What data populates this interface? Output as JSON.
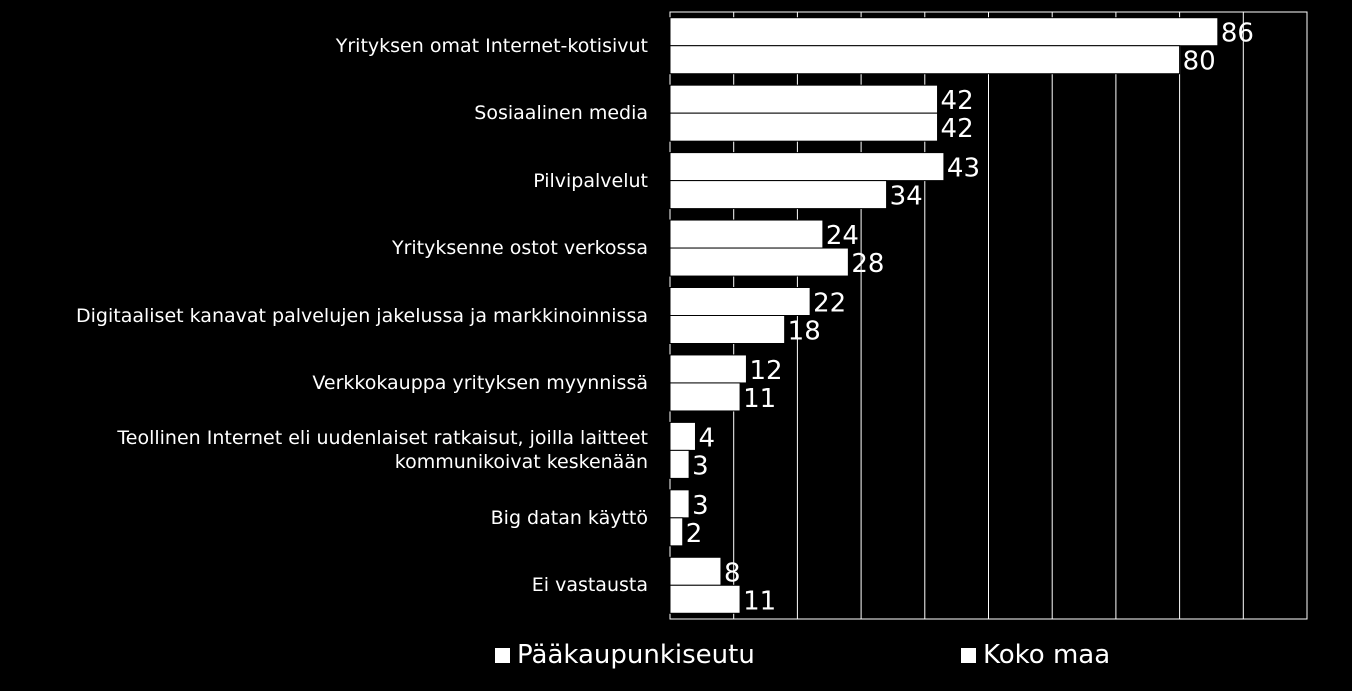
{
  "chart_data": {
    "type": "bar",
    "orientation": "horizontal",
    "categories": [
      "Yrityksen omat Internet-kotisivut",
      "Sosiaalinen media",
      "Pilvipalvelut",
      "Yrityksenne ostot verkossa",
      "Digitaaliset kanavat palvelujen jakelussa ja markkinoinnissa",
      "Verkkokauppa yrityksen myynnissä",
      "Teollinen Internet eli uudenlaiset ratkaisut, joilla laitteet\nkommunikoivat keskenään",
      "Big datan käyttö",
      "Ei vastausta"
    ],
    "series": [
      {
        "name": "Pääkaupunkiseutu",
        "values": [
          86,
          42,
          43,
          24,
          22,
          12,
          4,
          3,
          8
        ]
      },
      {
        "name": "Koko maa",
        "values": [
          80,
          42,
          34,
          28,
          18,
          11,
          3,
          2,
          11
        ]
      }
    ],
    "xlim": [
      0,
      100
    ],
    "grid": true,
    "legend_position": "bottom",
    "colors": {
      "background": "#000000",
      "bar": "#ffffff",
      "grid": "#ffffff",
      "text": "#ffffff"
    }
  }
}
